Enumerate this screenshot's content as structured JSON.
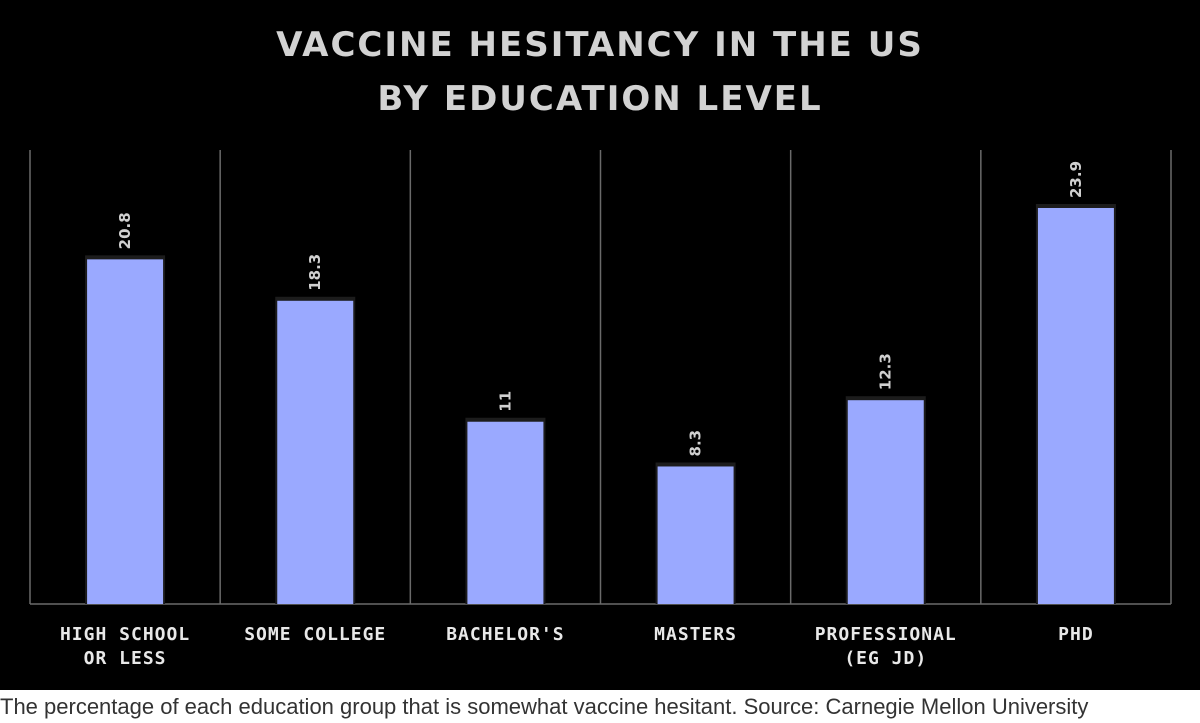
{
  "chart_data": {
    "type": "bar",
    "title": "VACCINE HESITANCY IN THE US BY EDUCATION LEVEL",
    "title_lines": [
      "VACCINE HESITANCY IN THE US",
      "BY EDUCATION LEVEL"
    ],
    "categories": [
      [
        "HIGH SCHOOL",
        "OR LESS"
      ],
      [
        "SOME COLLEGE"
      ],
      [
        "BACHELOR'S"
      ],
      [
        "MASTERS"
      ],
      [
        "PROFESSIONAL",
        "(EG JD)"
      ],
      [
        "PHD"
      ]
    ],
    "values": [
      20.8,
      18.3,
      11,
      8.3,
      12.3,
      23.9
    ],
    "value_labels": [
      "20.8",
      "18.3",
      "11",
      "8.3",
      "12.3",
      "23.9"
    ],
    "xlabel": "",
    "ylabel": "",
    "ylim": [
      0,
      27.4
    ],
    "grid": "vertical separators",
    "bar_color": "#9aa9ff",
    "background_color": "#000000"
  },
  "caption": "The percentage of each education group that is somewhat vaccine hesitant. Source: Carnegie Mellon University"
}
